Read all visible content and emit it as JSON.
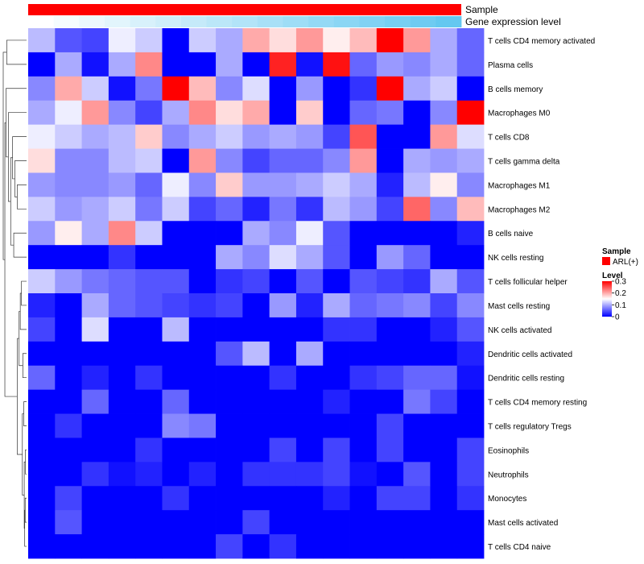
{
  "chart_data": {
    "type": "heatmap",
    "title": "",
    "annotations": {
      "sample_label": "Sample",
      "expression_label": "Gene expression level",
      "gene_expression_values": [
        0.0,
        0.05,
        0.1,
        0.15,
        0.2,
        0.25,
        0.3,
        0.35,
        0.4,
        0.45,
        0.5,
        0.55,
        0.6,
        0.65,
        0.7,
        0.75,
        0.8
      ]
    },
    "legend": {
      "sample_title": "Sample",
      "sample_entry": "ARL(+)",
      "sample_color": "#ff0000",
      "level_title": "Level",
      "level_ticks": [
        "0.3",
        "0.2",
        "0.1",
        "0"
      ],
      "scale": {
        "low": "#0000ff",
        "mid": "#ffffff",
        "high": "#ff0000",
        "min": 0,
        "max": 0.3
      }
    },
    "rows": [
      "T cells CD4 memory activated",
      "Plasma cells",
      "B cells memory",
      "Macrophages M0",
      "T cells CD8",
      "T cells gamma delta",
      "Macrophages M1",
      "Macrophages M2",
      "B cells naive",
      "NK cells resting",
      "T cells follicular helper",
      "Mast cells resting",
      "NK cells activated",
      "Dendritic cells activated",
      "Dendritic cells resting",
      "T cells CD4 memory resting",
      "T cells regulatory  Tregs",
      "Eosinophils",
      "Neutrophils",
      "Monocytes",
      "Mast cells activated",
      "T cells CD4 naive"
    ],
    "values": [
      [
        0.11,
        0.05,
        0.04,
        0.14,
        0.12,
        0.0,
        0.12,
        0.1,
        0.2,
        0.17,
        0.21,
        0.16,
        0.19,
        0.3,
        0.21,
        0.1,
        0.06
      ],
      [
        0.0,
        0.1,
        0.01,
        0.1,
        0.22,
        0.0,
        0.0,
        0.1,
        0.0,
        0.28,
        0.01,
        0.29,
        0.06,
        0.09,
        0.08,
        0.1,
        0.06
      ],
      [
        0.08,
        0.2,
        0.12,
        0.01,
        0.07,
        0.3,
        0.19,
        0.08,
        0.13,
        0.0,
        0.09,
        0.0,
        0.03,
        0.3,
        0.1,
        0.12,
        0.0
      ],
      [
        0.1,
        0.14,
        0.21,
        0.08,
        0.04,
        0.1,
        0.22,
        0.17,
        0.2,
        0.0,
        0.18,
        0.0,
        0.06,
        0.07,
        0.0,
        0.08,
        0.3
      ],
      [
        0.14,
        0.12,
        0.1,
        0.11,
        0.18,
        0.08,
        0.1,
        0.12,
        0.09,
        0.1,
        0.09,
        0.04,
        0.25,
        0.0,
        0.0,
        0.21,
        0.13
      ],
      [
        0.17,
        0.08,
        0.08,
        0.11,
        0.12,
        0.0,
        0.21,
        0.08,
        0.04,
        0.06,
        0.06,
        0.08,
        0.21,
        0.0,
        0.1,
        0.09,
        0.1
      ],
      [
        0.09,
        0.08,
        0.08,
        0.09,
        0.06,
        0.14,
        0.08,
        0.18,
        0.09,
        0.09,
        0.1,
        0.12,
        0.1,
        0.02,
        0.11,
        0.16,
        0.08
      ],
      [
        0.12,
        0.09,
        0.1,
        0.12,
        0.07,
        0.12,
        0.04,
        0.06,
        0.02,
        0.07,
        0.03,
        0.11,
        0.09,
        0.04,
        0.24,
        0.08,
        0.19
      ],
      [
        0.09,
        0.16,
        0.1,
        0.22,
        0.12,
        0.0,
        0.0,
        0.0,
        0.1,
        0.08,
        0.14,
        0.05,
        0.0,
        0.0,
        0.0,
        0.0,
        0.02
      ],
      [
        0.0,
        0.0,
        0.0,
        0.03,
        0.0,
        0.0,
        0.0,
        0.1,
        0.08,
        0.13,
        0.1,
        0.05,
        0.0,
        0.09,
        0.06,
        0.0,
        0.0
      ],
      [
        0.12,
        0.09,
        0.07,
        0.06,
        0.05,
        0.05,
        0.0,
        0.03,
        0.04,
        0.0,
        0.05,
        0.0,
        0.05,
        0.04,
        0.03,
        0.1,
        0.05
      ],
      [
        0.02,
        0.0,
        0.1,
        0.06,
        0.05,
        0.04,
        0.03,
        0.04,
        0.0,
        0.09,
        0.02,
        0.1,
        0.06,
        0.07,
        0.08,
        0.04,
        0.08
      ],
      [
        0.04,
        0.0,
        0.13,
        0.0,
        0.0,
        0.11,
        0.0,
        0.0,
        0.0,
        0.0,
        0.0,
        0.03,
        0.03,
        0.0,
        0.0,
        0.02,
        0.05
      ],
      [
        0.0,
        0.0,
        0.0,
        0.0,
        0.0,
        0.0,
        0.0,
        0.05,
        0.11,
        0.0,
        0.1,
        0.0,
        0.0,
        0.0,
        0.0,
        0.0,
        0.02
      ],
      [
        0.06,
        0.0,
        0.02,
        0.0,
        0.03,
        0.0,
        0.0,
        0.0,
        0.0,
        0.03,
        0.0,
        0.0,
        0.03,
        0.04,
        0.06,
        0.06,
        0.01
      ],
      [
        0.0,
        0.0,
        0.06,
        0.0,
        0.0,
        0.06,
        0.0,
        0.0,
        0.0,
        0.0,
        0.0,
        0.02,
        0.0,
        0.0,
        0.07,
        0.04,
        0.0
      ],
      [
        0.0,
        0.03,
        0.0,
        0.0,
        0.0,
        0.08,
        0.07,
        0.0,
        0.0,
        0.0,
        0.0,
        0.0,
        0.0,
        0.04,
        0.0,
        0.0,
        0.0
      ],
      [
        0.0,
        0.0,
        0.0,
        0.0,
        0.03,
        0.0,
        0.0,
        0.0,
        0.0,
        0.04,
        0.0,
        0.04,
        0.0,
        0.04,
        0.0,
        0.0,
        0.04
      ],
      [
        0.0,
        0.0,
        0.03,
        0.01,
        0.02,
        0.0,
        0.02,
        0.0,
        0.03,
        0.03,
        0.03,
        0.04,
        0.01,
        0.0,
        0.05,
        0.0,
        0.04
      ],
      [
        0.0,
        0.04,
        0.0,
        0.0,
        0.0,
        0.03,
        0.0,
        0.0,
        0.0,
        0.0,
        0.0,
        0.02,
        0.0,
        0.04,
        0.04,
        0.0,
        0.03
      ],
      [
        0.0,
        0.05,
        0.0,
        0.0,
        0.0,
        0.0,
        0.0,
        0.0,
        0.04,
        0.0,
        0.0,
        0.0,
        0.0,
        0.0,
        0.0,
        0.0,
        0.0
      ],
      [
        0.0,
        0.0,
        0.0,
        0.0,
        0.0,
        0.0,
        0.0,
        0.04,
        0.0,
        0.03,
        0.0,
        0.0,
        0.0,
        0.0,
        0.0,
        0.0,
        0.0
      ]
    ]
  }
}
